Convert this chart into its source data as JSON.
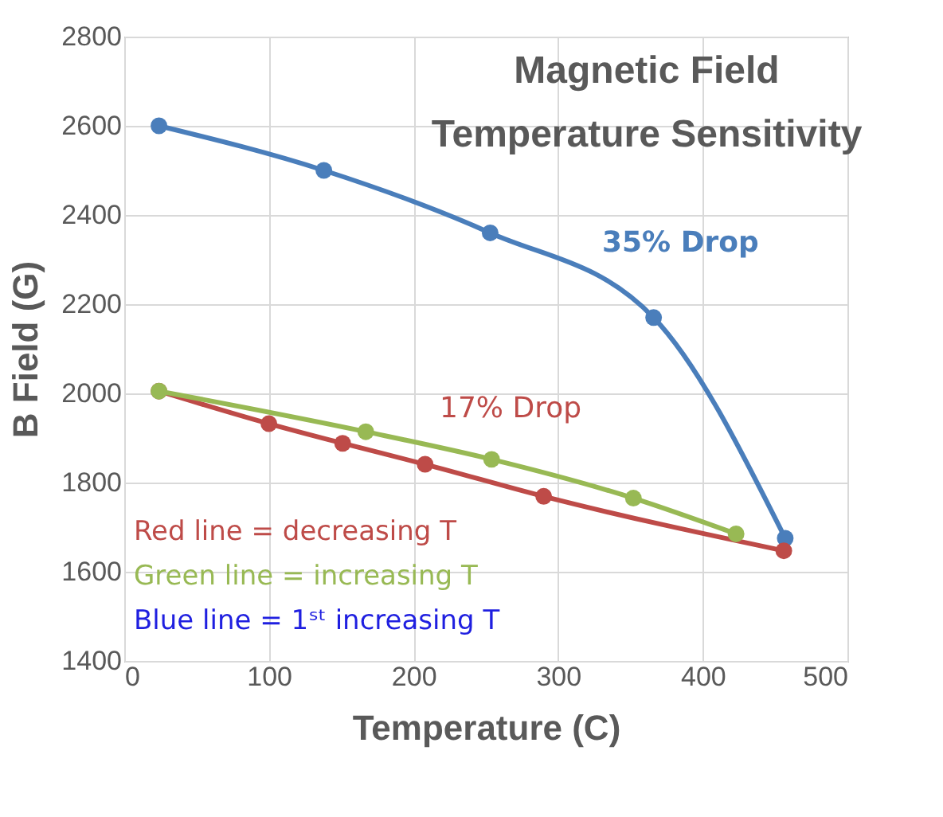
{
  "chart_data": {
    "type": "line",
    "title": "Magnetic Field\nTemperature Sensitivity",
    "xlabel": "Temperature (C)",
    "ylabel": "B Field (G)",
    "xlim": [
      0,
      500
    ],
    "xticks": [
      0,
      100,
      200,
      300,
      400,
      500
    ],
    "ylim": [
      1400,
      2800
    ],
    "yticks": [
      1400,
      1600,
      1800,
      2000,
      2200,
      2400,
      2600,
      2800
    ],
    "grid": true,
    "marker": "circle",
    "line_style": "solid",
    "series": [
      {
        "color": "#4a7ebb",
        "x": [
          24,
          138,
          253,
          366,
          457
        ],
        "values": [
          2600,
          2500,
          2360,
          2170,
          1675
        ]
      },
      {
        "color": "#be4b48",
        "x": [
          24,
          100,
          151,
          208,
          290,
          456
        ],
        "values": [
          2005,
          1932,
          1888,
          1841,
          1769,
          1647
        ]
      },
      {
        "color": "#98b954",
        "x": [
          24,
          167,
          254,
          352,
          423
        ],
        "values": [
          2005,
          1914,
          1852,
          1765,
          1685
        ]
      }
    ],
    "annotations": [
      "35% Drop",
      "17% Drop",
      "Red line = decreasing T",
      "Green line = increasing T",
      "Blue line = 1ˢᵗ increasing T"
    ]
  }
}
